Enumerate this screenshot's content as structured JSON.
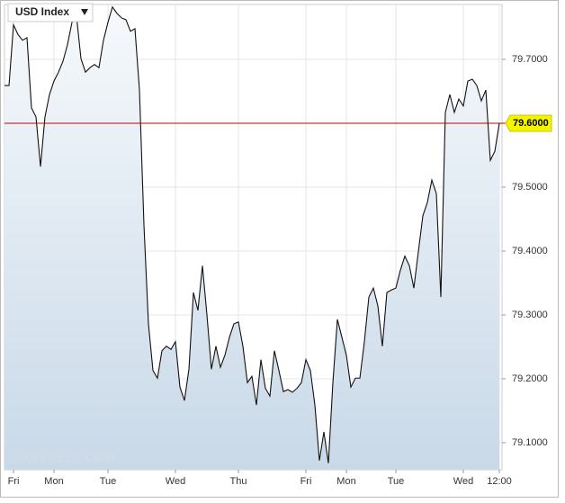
{
  "chart_data": {
    "type": "line",
    "title": "USD Index",
    "watermark": "FXSTREET.COM",
    "color": "#111111",
    "fill": true,
    "grid": true,
    "categories": [
      null,
      null,
      "Fri",
      null,
      null,
      null,
      null,
      null,
      null,
      null,
      null,
      "Mon",
      null,
      null,
      null,
      null,
      null,
      null,
      null,
      null,
      null,
      null,
      null,
      "Tue",
      null,
      null,
      null,
      null,
      null,
      null,
      null,
      null,
      null,
      null,
      null,
      null,
      null,
      null,
      "Wed",
      null,
      null,
      null,
      null,
      null,
      null,
      null,
      null,
      null,
      null,
      null,
      null,
      null,
      "Thu",
      null,
      null,
      null,
      null,
      null,
      null,
      null,
      null,
      null,
      null,
      null,
      null,
      null,
      null,
      "Fri",
      null,
      null,
      null,
      null,
      null,
      null,
      null,
      null,
      "Mon",
      null,
      null,
      null,
      null,
      null,
      null,
      null,
      null,
      null,
      null,
      "Tue",
      null,
      null,
      null,
      null,
      null,
      null,
      null,
      null,
      null,
      null,
      null,
      null,
      null,
      null,
      "Wed",
      null,
      null,
      null,
      null,
      null,
      null,
      null,
      "12:00"
    ],
    "values": [
      79.659,
      79.659,
      79.754,
      79.739,
      79.73,
      79.734,
      79.624,
      79.61,
      79.532,
      79.61,
      79.645,
      79.666,
      79.68,
      79.697,
      79.723,
      79.758,
      79.768,
      79.701,
      79.68,
      79.687,
      79.692,
      79.687,
      79.73,
      79.758,
      79.782,
      79.772,
      79.765,
      79.762,
      79.744,
      79.748,
      79.652,
      79.441,
      79.286,
      79.213,
      79.201,
      79.244,
      79.251,
      79.246,
      79.258,
      79.187,
      79.166,
      79.215,
      79.335,
      79.307,
      79.377,
      79.3,
      79.215,
      79.251,
      79.218,
      79.237,
      79.265,
      79.286,
      79.289,
      79.251,
      79.194,
      79.204,
      79.159,
      79.23,
      79.185,
      79.173,
      79.244,
      79.213,
      79.18,
      79.183,
      79.179,
      79.185,
      79.194,
      79.23,
      79.213,
      79.159,
      79.072,
      79.117,
      79.068,
      79.194,
      79.293,
      79.265,
      79.237,
      79.187,
      79.201,
      79.201,
      79.258,
      79.328,
      79.342,
      79.314,
      79.251,
      79.335,
      79.339,
      79.342,
      79.37,
      79.392,
      79.377,
      79.342,
      79.399,
      79.455,
      79.476,
      79.511,
      79.49,
      79.328,
      79.617,
      79.645,
      79.617,
      79.638,
      79.627,
      79.666,
      79.669,
      79.659,
      79.635,
      79.652,
      79.542,
      79.556,
      79.6
    ],
    "ylim": [
      79.0577,
      79.7859
    ],
    "yticks": [
      {
        "value": 79.1,
        "label": "79.1000"
      },
      {
        "value": 79.2,
        "label": "79.2000"
      },
      {
        "value": 79.3,
        "label": "79.3000"
      },
      {
        "value": 79.4,
        "label": "79.4000"
      },
      {
        "value": 79.5,
        "label": "79.5000"
      },
      {
        "value": 79.7,
        "label": "79.7000"
      }
    ],
    "current": {
      "value": 79.6,
      "label": "79.6000",
      "color": "#c00000"
    }
  }
}
